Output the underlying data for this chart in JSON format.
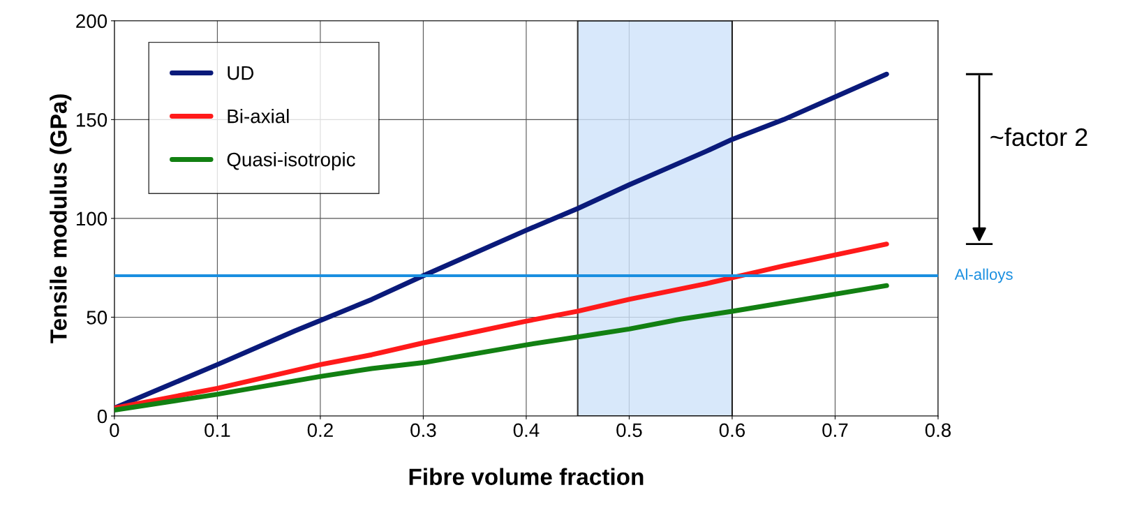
{
  "chart_data": {
    "type": "line",
    "xlabel": "Fibre volume fraction",
    "ylabel": "Tensile modulus (GPa)",
    "series": [
      {
        "name": "UD",
        "color": "#0a1a7a",
        "x": [
          0,
          0.05,
          0.1,
          0.175,
          0.25,
          0.3,
          0.4,
          0.45,
          0.5,
          0.575,
          0.6,
          0.65,
          0.75
        ],
        "values": [
          4,
          15,
          26,
          43,
          59,
          71,
          94,
          105,
          117,
          134,
          140,
          150,
          173
        ]
      },
      {
        "name": "Bi-axial",
        "color": "#ff1a1a",
        "x": [
          0,
          0.1,
          0.175,
          0.2,
          0.25,
          0.3,
          0.4,
          0.45,
          0.5,
          0.575,
          0.6,
          0.65,
          0.75
        ],
        "values": [
          4,
          14,
          23,
          26,
          31,
          37,
          48,
          53,
          59,
          67,
          70,
          76,
          87
        ]
      },
      {
        "name": "Quasi-isotropic",
        "color": "#128012",
        "x": [
          0,
          0.1,
          0.2,
          0.25,
          0.3,
          0.4,
          0.45,
          0.5,
          0.55,
          0.6,
          0.75
        ],
        "values": [
          3,
          11,
          20,
          24,
          27,
          36,
          40,
          44,
          49,
          53,
          66
        ]
      }
    ],
    "xlim": [
      0,
      0.8
    ],
    "xticks": [
      0,
      0.1,
      0.2,
      0.3,
      0.4,
      0.5,
      0.6,
      0.7,
      0.8
    ],
    "ylim": [
      0,
      200
    ],
    "yticks": [
      0,
      50,
      100,
      150,
      200
    ],
    "ref_lines": [
      {
        "axis": "y",
        "value": 71,
        "label": "Al-alloys",
        "color": "#1a8fe0"
      }
    ],
    "bands": [
      {
        "axis": "x",
        "from": 0.45,
        "to": 0.6,
        "color": "#cfe3fa"
      }
    ],
    "annotations": [
      "~factor 2"
    ],
    "grid": true,
    "legend": "top left",
    "marker": "none",
    "line_style": "solid"
  }
}
